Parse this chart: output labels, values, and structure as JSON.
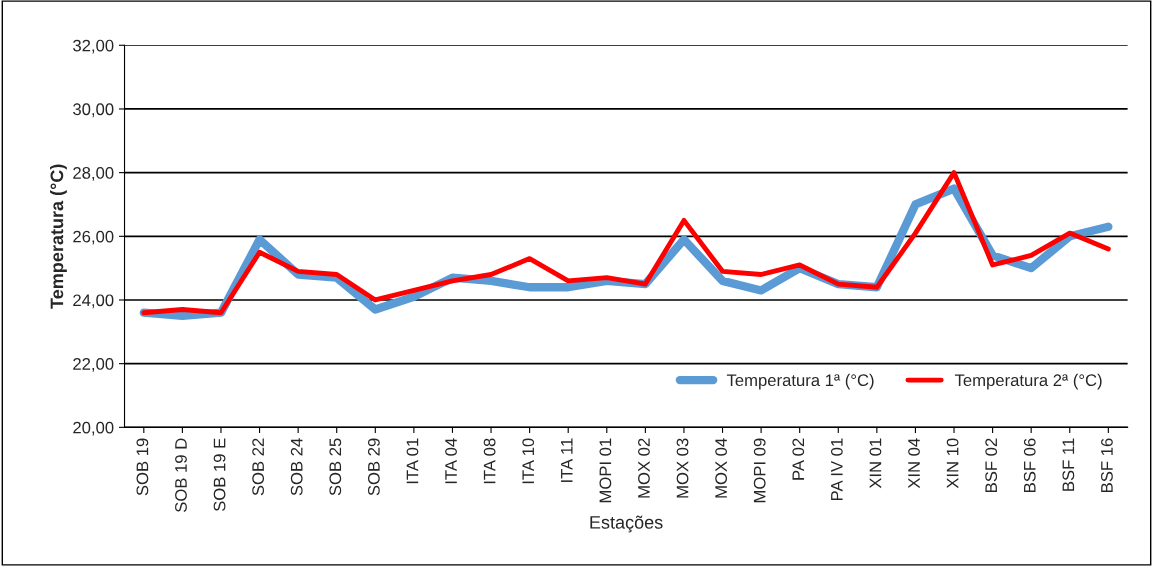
{
  "chart_data": {
    "type": "line",
    "xlabel": "Estações",
    "ylabel": "Temperatura (°C)",
    "categories": [
      "SOB 19",
      "SOB 19 D",
      "SOB 19 E",
      "SOB 22",
      "SOB 24",
      "SOB 25",
      "SOB 29",
      "ITA 01",
      "ITA 04",
      "ITA 08",
      "ITA 10",
      "ITA 11",
      "MOPI 01",
      "MOX 02",
      "MOX 03",
      "MOX 04",
      "MOPI 09",
      "PA 02",
      "PA IV 01",
      "XIN 01",
      "XIN 04",
      "XIN 10",
      "BSF 02",
      "BSF 06",
      "BSF 11",
      "BSF 16"
    ],
    "series": [
      {
        "name": "Temperatura 1ª (°C)",
        "color": "#5b9bd5",
        "values": [
          23.6,
          23.5,
          23.6,
          25.9,
          24.8,
          24.7,
          23.7,
          24.1,
          24.7,
          24.6,
          24.4,
          24.4,
          24.6,
          24.5,
          25.9,
          24.6,
          24.3,
          25.0,
          24.5,
          24.4,
          27.0,
          27.5,
          25.4,
          25.0,
          26.0,
          26.3
        ]
      },
      {
        "name": "Temperatura 2ª (°C)",
        "color": "#ff0000",
        "values": [
          23.6,
          23.7,
          23.6,
          25.5,
          24.9,
          24.8,
          24.0,
          24.3,
          24.6,
          24.8,
          25.3,
          24.6,
          24.7,
          24.5,
          26.5,
          24.9,
          24.8,
          25.1,
          24.5,
          24.4,
          26.1,
          28.0,
          25.1,
          25.4,
          26.1,
          25.6
        ]
      }
    ],
    "ylim": [
      20,
      32
    ],
    "yticks": [
      {
        "value": 20,
        "label": "20,00"
      },
      {
        "value": 22,
        "label": "22,00"
      },
      {
        "value": 24,
        "label": "24,00"
      },
      {
        "value": 26,
        "label": "26,00"
      },
      {
        "value": 28,
        "label": "28,00"
      },
      {
        "value": 30,
        "label": "30,00"
      },
      {
        "value": 32,
        "label": "32,00"
      }
    ],
    "grid": "y",
    "legend": "bottom right",
    "marker": "none",
    "line_style": "solid"
  }
}
